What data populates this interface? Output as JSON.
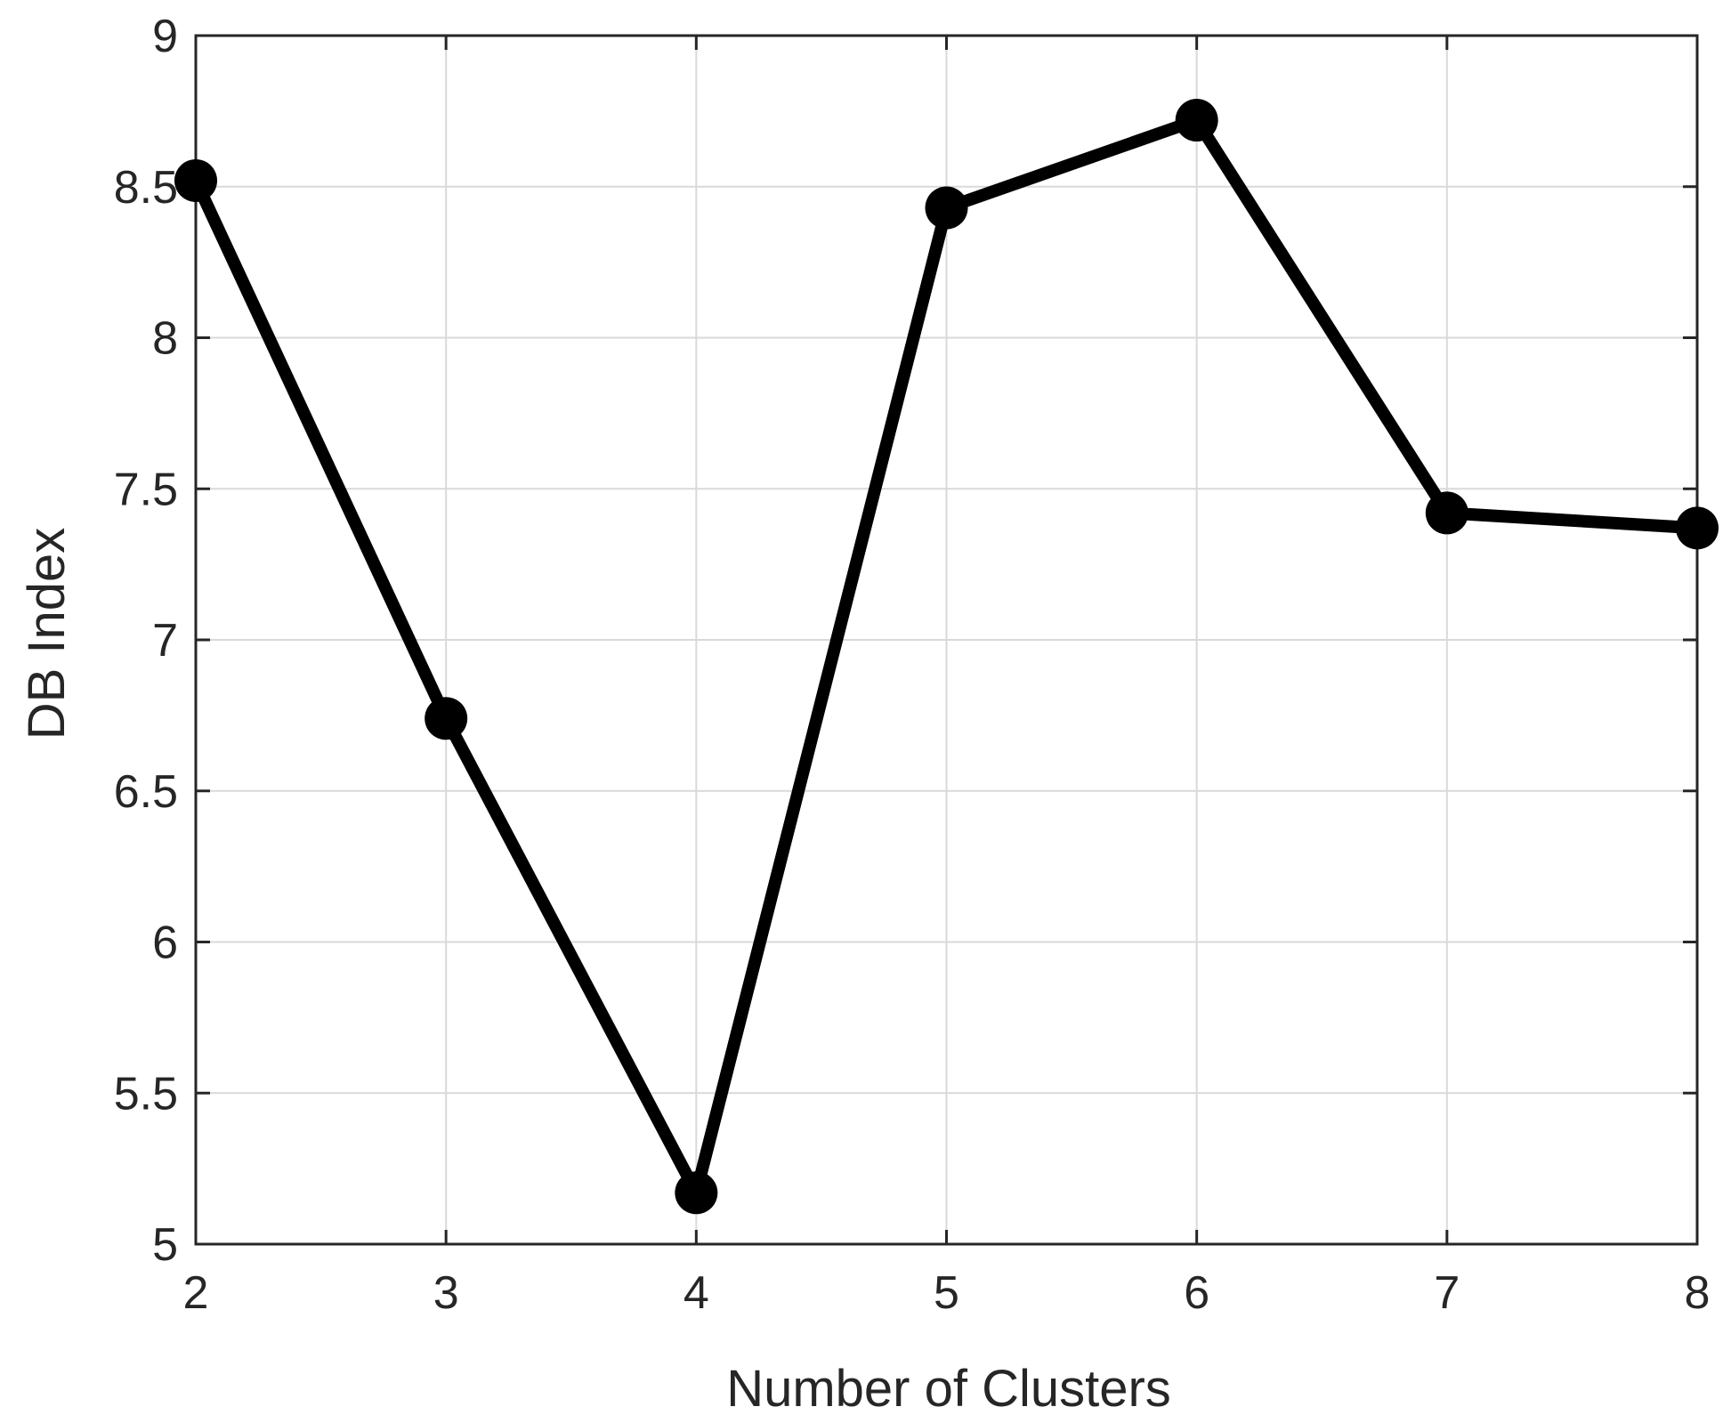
{
  "chart_data": {
    "type": "line",
    "title": "",
    "xlabel": "Number of Clusters",
    "ylabel": "DB Index",
    "x": [
      2,
      3,
      4,
      5,
      6,
      7,
      8
    ],
    "series": [
      {
        "values": [
          8.52,
          6.74,
          5.17,
          8.43,
          8.72,
          7.42,
          7.37
        ],
        "color": "#000000",
        "marker": "filled-circle"
      }
    ],
    "xlim": [
      2,
      8
    ],
    "ylim": [
      5,
      9
    ],
    "xticks": [
      2,
      3,
      4,
      5,
      6,
      7,
      8
    ],
    "yticks": [
      5,
      5.5,
      6,
      6.5,
      7,
      7.5,
      8,
      8.5,
      9
    ],
    "xtick_labels": [
      "2",
      "3",
      "4",
      "5",
      "6",
      "7",
      "8"
    ],
    "ytick_labels": [
      "5",
      "5.5",
      "6",
      "6.5",
      "7",
      "7.5",
      "8",
      "8.5",
      "9"
    ],
    "grid": true,
    "legend": "none",
    "colors": {
      "axis": "#262626",
      "grid": "#d9d9d9",
      "line": "#000000"
    }
  }
}
